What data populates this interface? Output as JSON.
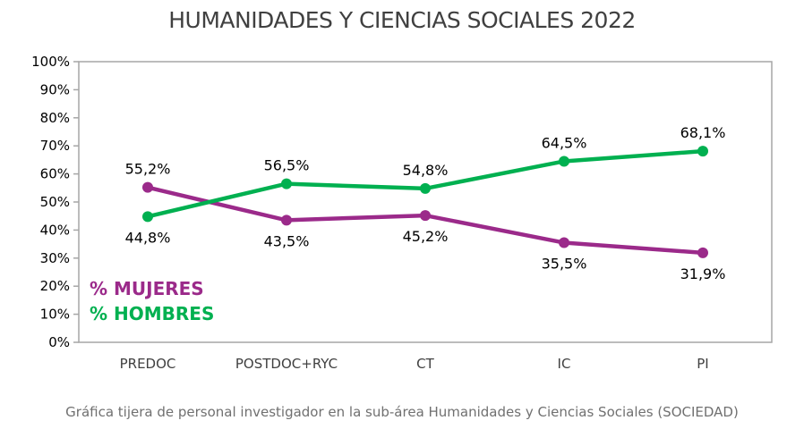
{
  "chart_data": {
    "type": "line",
    "title": "HUMANIDADES Y CIENCIAS SOCIALES 2022",
    "caption": "Gráfica tijera de personal investigador en la sub-área Humanidades y Ciencias Sociales (SOCIEDAD)",
    "categories": [
      "PREDOC",
      "POSTDOC+RYC",
      "CT",
      "IC",
      "PI"
    ],
    "ylim": [
      0,
      100
    ],
    "yticks": [
      "0%",
      "10%",
      "20%",
      "30%",
      "40%",
      "50%",
      "60%",
      "70%",
      "80%",
      "90%",
      "100%"
    ],
    "grid": false,
    "legend_position": "bottom-left",
    "series": [
      {
        "name": "% MUJERES",
        "color": "#9b2a8a",
        "values": [
          55.2,
          43.5,
          45.2,
          35.5,
          31.9
        ],
        "labels": [
          "55,2%",
          "43,5%",
          "45,2%",
          "35,5%",
          "31,9%"
        ]
      },
      {
        "name": "% HOMBRES",
        "color": "#00b050",
        "values": [
          44.8,
          56.5,
          54.8,
          64.5,
          68.1
        ],
        "labels": [
          "44,8%",
          "56,5%",
          "54,8%",
          "64,5%",
          "68,1%"
        ]
      }
    ]
  }
}
